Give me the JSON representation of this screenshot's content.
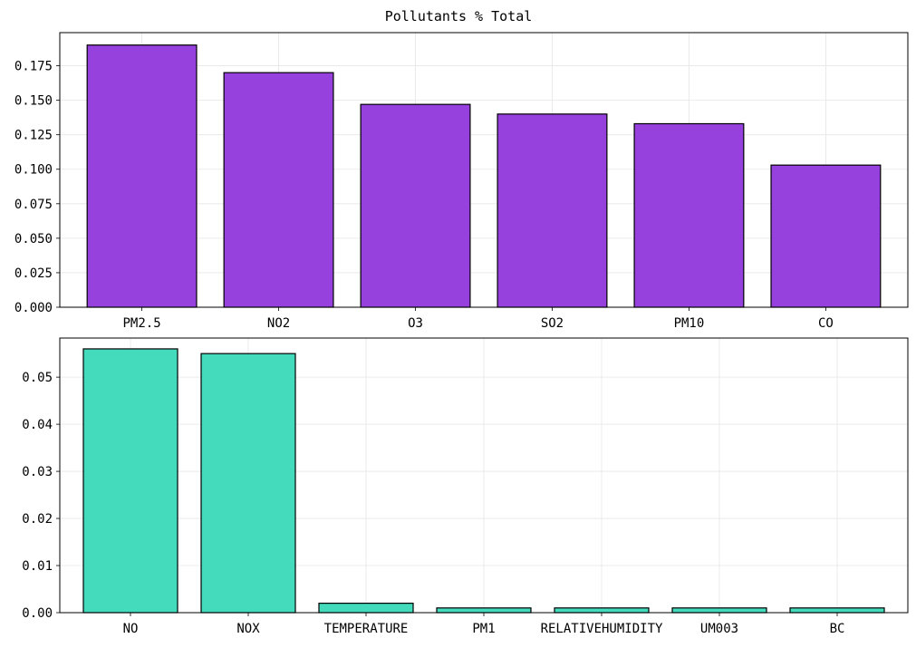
{
  "figure": {
    "title": "Pollutants % Total"
  },
  "chart_data": [
    {
      "type": "bar",
      "title": "Pollutants % Total",
      "xlabel": "",
      "ylabel": "",
      "categories": [
        "PM2.5",
        "NO2",
        "O3",
        "SO2",
        "PM10",
        "CO"
      ],
      "values": [
        0.19,
        0.17,
        0.147,
        0.14,
        0.133,
        0.103
      ],
      "ylim": [
        0,
        0.199
      ],
      "yticks": [
        0.0,
        0.025,
        0.05,
        0.075,
        0.1,
        0.125,
        0.15,
        0.175
      ],
      "ytick_labels": [
        "0.000",
        "0.025",
        "0.050",
        "0.075",
        "0.100",
        "0.125",
        "0.150",
        "0.175"
      ],
      "bar_color": "#9640dd",
      "grid": true,
      "legend": "none"
    },
    {
      "type": "bar",
      "xlabel": "",
      "ylabel": "",
      "categories": [
        "NO",
        "NOX",
        "TEMPERATURE",
        "PM1",
        "RELATIVEHUMIDITY",
        "UM003",
        "BC"
      ],
      "values": [
        0.056,
        0.055,
        0.002,
        0.001,
        0.001,
        0.001,
        0.001
      ],
      "ylim": [
        0,
        0.0583
      ],
      "yticks": [
        0.0,
        0.01,
        0.02,
        0.03,
        0.04,
        0.05
      ],
      "ytick_labels": [
        "0.00",
        "0.01",
        "0.02",
        "0.03",
        "0.04",
        "0.05"
      ],
      "bar_color": "#43dbbc",
      "grid": true,
      "legend": "none"
    }
  ]
}
